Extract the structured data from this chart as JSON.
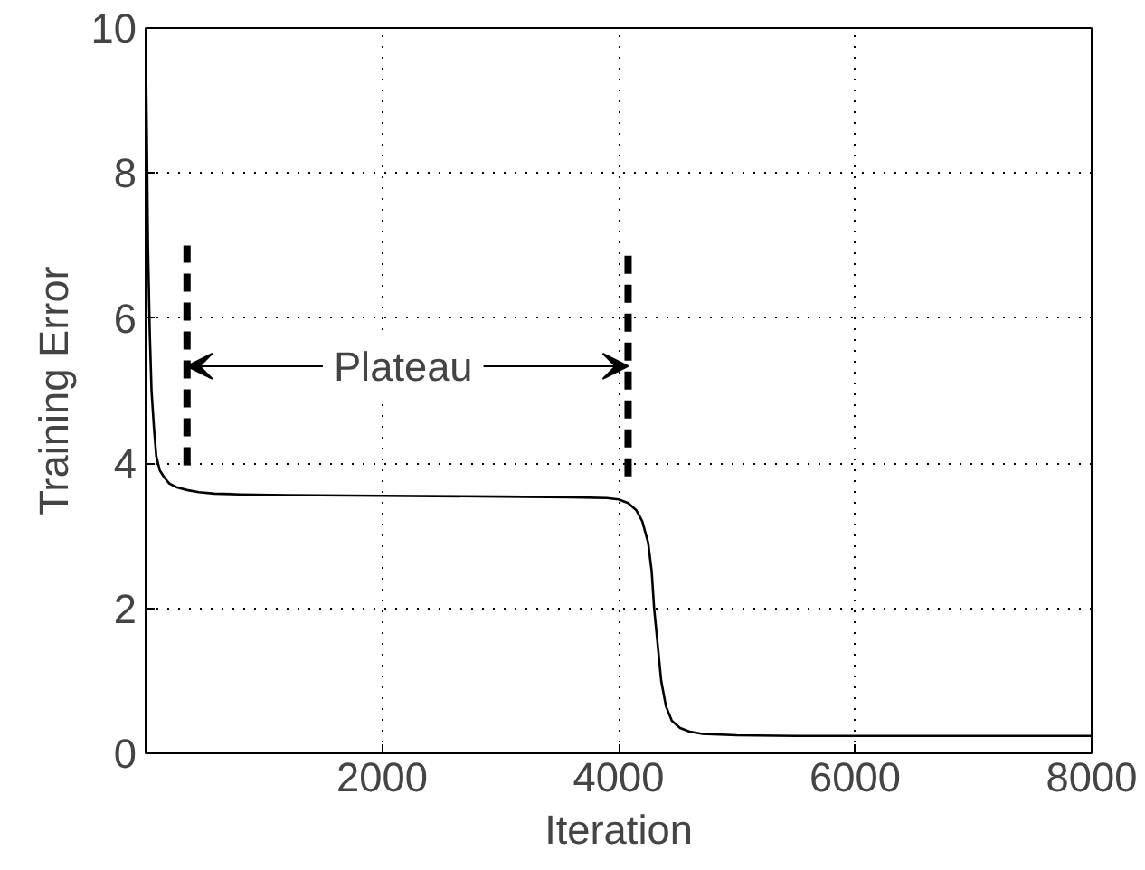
{
  "chart_data": {
    "type": "line",
    "xlabel": "Iteration",
    "ylabel": "Training Error",
    "xlim": [
      0,
      8000
    ],
    "ylim": [
      0,
      10
    ],
    "xticks": [
      2000,
      4000,
      6000,
      8000
    ],
    "yticks": [
      0,
      2,
      4,
      6,
      8,
      10
    ],
    "grid": true,
    "line_style": "solid",
    "marker": "none",
    "series": [
      {
        "color": "#000000",
        "x": [
          0,
          10,
          20,
          35,
          50,
          70,
          90,
          120,
          160,
          200,
          260,
          350,
          450,
          580,
          800,
          1200,
          2000,
          3000,
          3600,
          3900,
          4000,
          4080,
          4150,
          4200,
          4250,
          4280,
          4300,
          4330,
          4360,
          4400,
          4450,
          4520,
          4600,
          4700,
          5000,
          5500,
          6000,
          7000,
          8000
        ],
        "values": [
          10,
          8.6,
          7.0,
          5.8,
          5.0,
          4.5,
          4.1,
          3.9,
          3.8,
          3.72,
          3.67,
          3.63,
          3.6,
          3.58,
          3.57,
          3.56,
          3.55,
          3.54,
          3.53,
          3.52,
          3.5,
          3.45,
          3.35,
          3.2,
          2.9,
          2.5,
          2.0,
          1.5,
          1.0,
          0.65,
          0.45,
          0.35,
          0.3,
          0.27,
          0.25,
          0.24,
          0.24,
          0.24,
          0.24
        ]
      },
      {
        "color": "#000000",
        "line_style": "dashed",
        "x": [
          350,
          350
        ],
        "values": [
          3.97,
          7.0
        ]
      },
      {
        "color": "#000000",
        "line_style": "dashed",
        "x": [
          4080,
          4080
        ],
        "values": [
          3.82,
          6.88
        ]
      }
    ],
    "annotations": [
      "Plateau"
    ]
  }
}
